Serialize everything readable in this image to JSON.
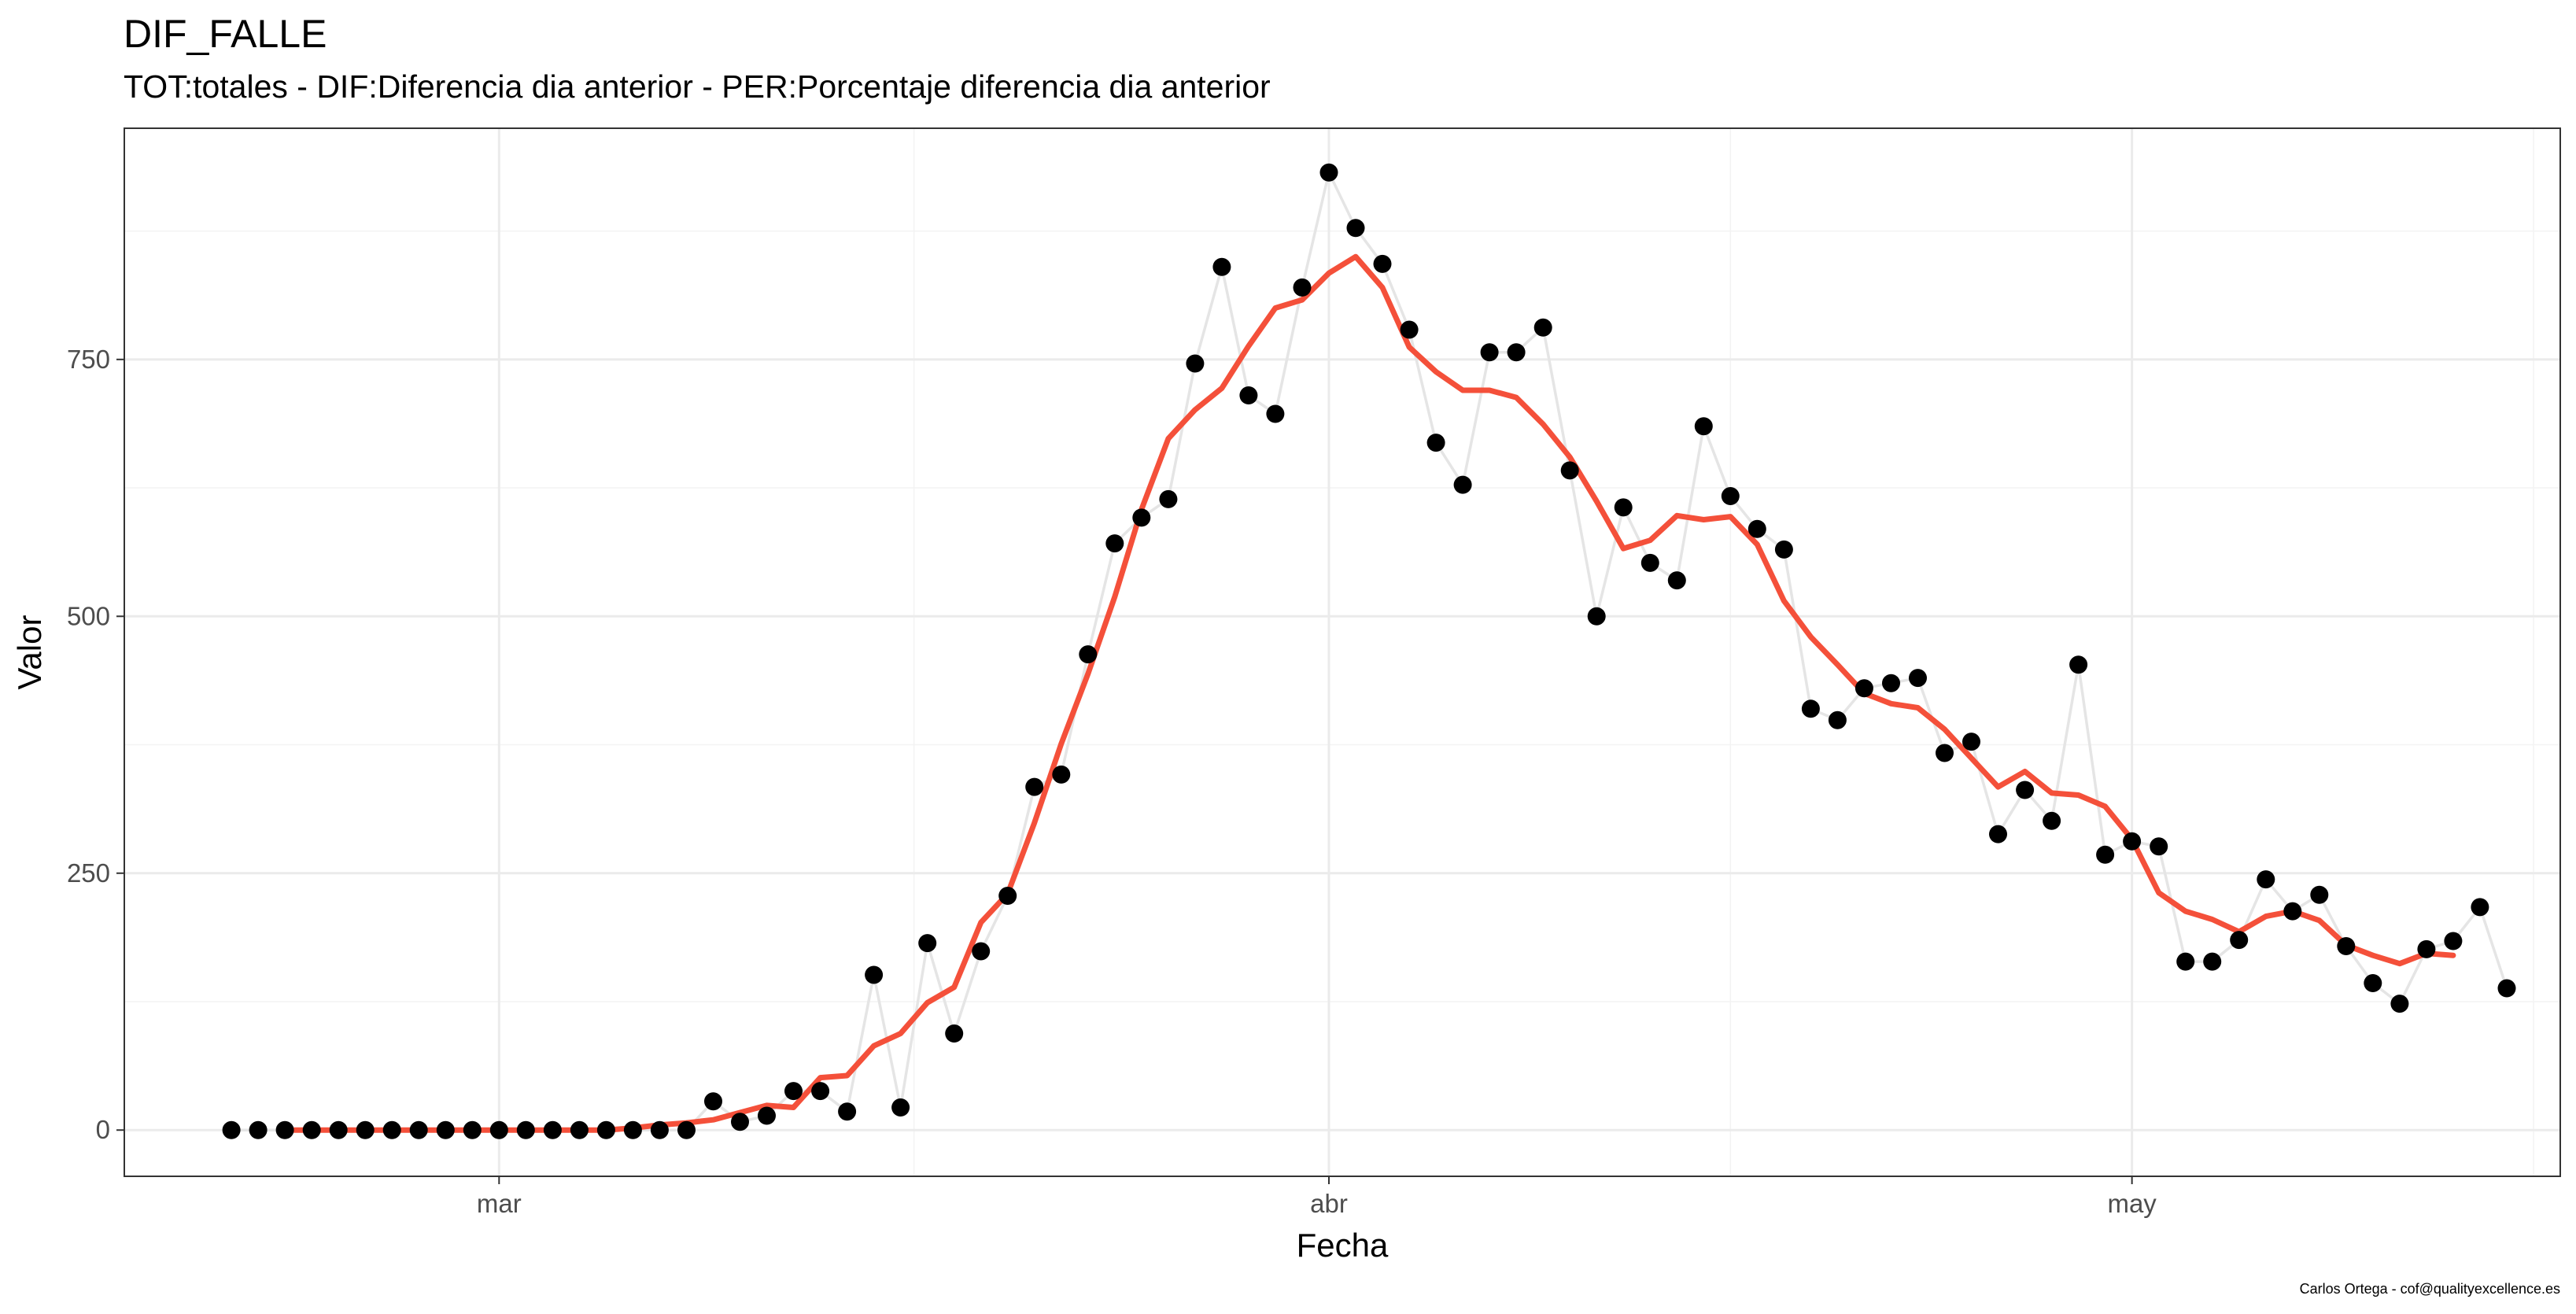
{
  "chart_data": {
    "type": "line",
    "title": "DIF_FALLE",
    "subtitle": "TOT:totales - DIF:Diferencia dia anterior - PER:Porcentaje diferencia dia anterior",
    "xlabel": "Fecha",
    "ylabel": "Valor",
    "caption": "Carlos Ortega - cof@qualityexcellence.es",
    "x_range": [
      "2020-02-16",
      "2020-05-17"
    ],
    "ylim": [
      -45,
      975
    ],
    "y_ticks": [
      0,
      250,
      500,
      750
    ],
    "x_ticks": [
      {
        "date": "2020-03-01",
        "label": "mar"
      },
      {
        "date": "2020-04-01",
        "label": "abr"
      },
      {
        "date": "2020-05-01",
        "label": "may"
      }
    ],
    "grid": true,
    "start_date": "2020-02-20",
    "colors": {
      "points": "#000000",
      "connector": "#e5e5e5",
      "smooth": "#f4503a",
      "grid": "#ebebeb",
      "border": "#333333"
    },
    "series": [
      {
        "kind": "points",
        "values": [
          0,
          0,
          0,
          0,
          0,
          0,
          0,
          0,
          0,
          0,
          0,
          0,
          0,
          0,
          0,
          0,
          0,
          0,
          28,
          8,
          14,
          38,
          38,
          18,
          151,
          22,
          182,
          94,
          174,
          228,
          334,
          346,
          463,
          571,
          596,
          614,
          746,
          840,
          715,
          697,
          820,
          932,
          878,
          843,
          779,
          669,
          628,
          757,
          757,
          781,
          642,
          500,
          606,
          552,
          535,
          685,
          617,
          585,
          565,
          410,
          399,
          430,
          435,
          440,
          367,
          378,
          288,
          331,
          301,
          453,
          268,
          281,
          276,
          164,
          164,
          185,
          244,
          213,
          229,
          179,
          143,
          123,
          176,
          184,
          217,
          138
        ]
      },
      {
        "kind": "smooth",
        "values": [
          null,
          null,
          0,
          0,
          0,
          0,
          0,
          0,
          0,
          0,
          0,
          0,
          0,
          0,
          0,
          2,
          5,
          7,
          10,
          17,
          24,
          22,
          51,
          53,
          82,
          94,
          124,
          139,
          202,
          230,
          299,
          376,
          444,
          519,
          604,
          673,
          701,
          722,
          763,
          800,
          808,
          834,
          850,
          820,
          762,
          738,
          720,
          720,
          713,
          687,
          655,
          612,
          566,
          574,
          598,
          594,
          597,
          570,
          515,
          480,
          453,
          425,
          415,
          411,
          390,
          362,
          334,
          349,
          328,
          326,
          315,
          283,
          231,
          213,
          205,
          193,
          208,
          213,
          204,
          180,
          170,
          162,
          172,
          170,
          null,
          null
        ]
      }
    ]
  }
}
